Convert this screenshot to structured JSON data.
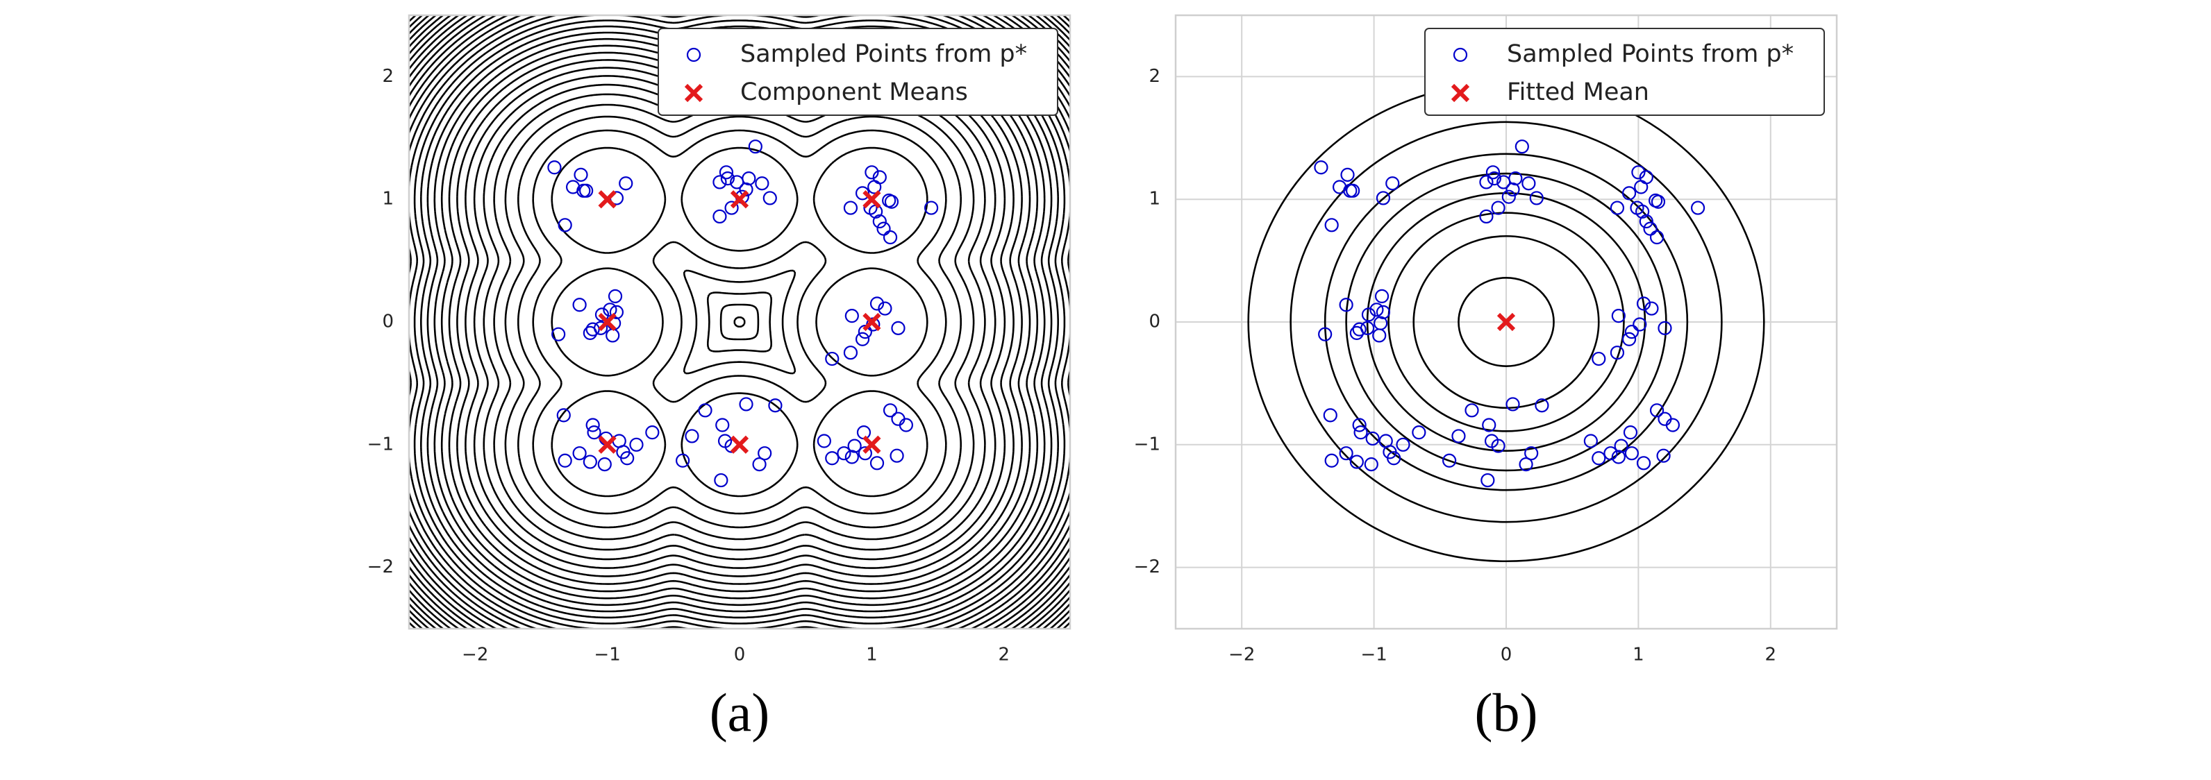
{
  "chart_data": [
    {
      "type": "scatter",
      "caption": "(a)",
      "legend": "upper right",
      "grid": false,
      "contours": "mixture",
      "xlim": [
        -2.5,
        2.5
      ],
      "ylim": [
        -2.5,
        2.5
      ],
      "xticks": [
        {
          "value": -2,
          "label": "−2"
        },
        {
          "value": -1,
          "label": "−1"
        },
        0,
        1,
        2
      ],
      "yticks": [
        {
          "value": -2,
          "label": "−2"
        },
        {
          "value": -1,
          "label": "−1"
        },
        0,
        1,
        2
      ],
      "series": [
        {
          "name": "Sampled Points from p*",
          "color": "#0000cc",
          "marker": "circle",
          "x": [
            -1.4,
            -1.26,
            -1.2,
            -1.18,
            -1.16,
            -1.32,
            -0.93,
            -0.86,
            0.12,
            -0.1,
            -0.09,
            -0.15,
            -0.02,
            0.07,
            0.05,
            0.17,
            0.23,
            -0.06,
            -0.15,
            0.02,
            0.93,
            1.0,
            1.06,
            1.02,
            1.13,
            1.15,
            0.99,
            1.03,
            1.06,
            1.09,
            1.14,
            1.45,
            0.84,
            -1.21,
            -0.94,
            -0.98,
            -0.93,
            -1.04,
            -1.05,
            -1.11,
            -1.13,
            -0.96,
            -1.37,
            -0.95,
            1.04,
            1.1,
            0.85,
            1.01,
            1.2,
            0.95,
            0.93,
            0.84,
            0.7,
            -1.33,
            -1.11,
            -1.1,
            -0.66,
            -1.01,
            -0.91,
            -0.78,
            -0.88,
            -0.85,
            -1.21,
            -1.32,
            -1.13,
            -1.02,
            0.05,
            -0.26,
            0.27,
            -0.13,
            -0.36,
            -0.11,
            -0.06,
            0.19,
            -0.43,
            0.15,
            -0.14,
            1.14,
            1.2,
            1.26,
            0.94,
            0.64,
            0.87,
            0.79,
            1.19,
            0.95,
            0.7,
            0.85,
            1.04
          ],
          "values": [
            1.26,
            1.1,
            1.2,
            1.07,
            1.07,
            0.79,
            1.01,
            1.13,
            1.43,
            1.22,
            1.17,
            1.14,
            1.14,
            1.17,
            1.08,
            1.13,
            1.01,
            0.93,
            0.86,
            1.02,
            1.05,
            1.22,
            1.18,
            1.1,
            0.99,
            0.98,
            0.93,
            0.9,
            0.82,
            0.76,
            0.69,
            0.93,
            0.93,
            0.14,
            0.21,
            0.1,
            0.08,
            0.06,
            -0.05,
            -0.06,
            -0.09,
            -0.11,
            -0.1,
            -0.01,
            0.15,
            0.11,
            0.05,
            -0.02,
            -0.05,
            -0.08,
            -0.14,
            -0.25,
            -0.3,
            -0.76,
            -0.84,
            -0.9,
            -0.9,
            -0.95,
            -0.97,
            -1.0,
            -1.06,
            -1.11,
            -1.07,
            -1.13,
            -1.14,
            -1.16,
            -0.67,
            -0.72,
            -0.68,
            -0.84,
            -0.93,
            -0.97,
            -1.01,
            -1.07,
            -1.13,
            -1.16,
            -1.29,
            -0.72,
            -0.79,
            -0.84,
            -0.9,
            -0.97,
            -1.01,
            -1.07,
            -1.09,
            -1.07,
            -1.11,
            -1.1,
            -1.15
          ]
        },
        {
          "name": "Component Means",
          "color": "#e31a1c",
          "marker": "x",
          "x": [
            -1,
            0,
            1,
            -1,
            1,
            -1,
            0,
            1
          ],
          "values": [
            1,
            1,
            1,
            0,
            0,
            -1,
            -1,
            -1
          ]
        }
      ]
    },
    {
      "type": "scatter",
      "caption": "(b)",
      "legend": "upper right",
      "grid": true,
      "contours": "gaussian",
      "xlim": [
        -2.5,
        2.5
      ],
      "ylim": [
        -2.5,
        2.5
      ],
      "xticks": [
        {
          "value": -2,
          "label": "−2"
        },
        {
          "value": -1,
          "label": "−1"
        },
        0,
        1,
        2
      ],
      "yticks": [
        {
          "value": -2,
          "label": "−2"
        },
        {
          "value": -1,
          "label": "−1"
        },
        0,
        1,
        2
      ],
      "series": [
        {
          "name": "Sampled Points from p*",
          "color": "#0000cc",
          "marker": "circle",
          "x": [
            -1.4,
            -1.26,
            -1.2,
            -1.18,
            -1.16,
            -1.32,
            -0.93,
            -0.86,
            0.12,
            -0.1,
            -0.09,
            -0.15,
            -0.02,
            0.07,
            0.05,
            0.17,
            0.23,
            -0.06,
            -0.15,
            0.02,
            0.93,
            1.0,
            1.06,
            1.02,
            1.13,
            1.15,
            0.99,
            1.03,
            1.06,
            1.09,
            1.14,
            1.45,
            0.84,
            -1.21,
            -0.94,
            -0.98,
            -0.93,
            -1.04,
            -1.05,
            -1.11,
            -1.13,
            -0.96,
            -1.37,
            -0.95,
            1.04,
            1.1,
            0.85,
            1.01,
            1.2,
            0.95,
            0.93,
            0.84,
            0.7,
            -1.33,
            -1.11,
            -1.1,
            -0.66,
            -1.01,
            -0.91,
            -0.78,
            -0.88,
            -0.85,
            -1.21,
            -1.32,
            -1.13,
            -1.02,
            0.05,
            -0.26,
            0.27,
            -0.13,
            -0.36,
            -0.11,
            -0.06,
            0.19,
            -0.43,
            0.15,
            -0.14,
            1.14,
            1.2,
            1.26,
            0.94,
            0.64,
            0.87,
            0.79,
            1.19,
            0.95,
            0.7,
            0.85,
            1.04
          ],
          "values": [
            1.26,
            1.1,
            1.2,
            1.07,
            1.07,
            0.79,
            1.01,
            1.13,
            1.43,
            1.22,
            1.17,
            1.14,
            1.14,
            1.17,
            1.08,
            1.13,
            1.01,
            0.93,
            0.86,
            1.02,
            1.05,
            1.22,
            1.18,
            1.1,
            0.99,
            0.98,
            0.93,
            0.9,
            0.82,
            0.76,
            0.69,
            0.93,
            0.93,
            0.14,
            0.21,
            0.1,
            0.08,
            0.06,
            -0.05,
            -0.06,
            -0.09,
            -0.11,
            -0.1,
            -0.01,
            0.15,
            0.11,
            0.05,
            -0.02,
            -0.05,
            -0.08,
            -0.14,
            -0.25,
            -0.3,
            -0.76,
            -0.84,
            -0.9,
            -0.9,
            -0.95,
            -0.97,
            -1.0,
            -1.06,
            -1.11,
            -1.07,
            -1.13,
            -1.14,
            -1.16,
            -0.67,
            -0.72,
            -0.68,
            -0.84,
            -0.93,
            -0.97,
            -1.01,
            -1.07,
            -1.13,
            -1.16,
            -1.29,
            -0.72,
            -0.79,
            -0.84,
            -0.9,
            -0.97,
            -1.01,
            -1.07,
            -1.09,
            -1.07,
            -1.11,
            -1.1,
            -1.15
          ]
        },
        {
          "name": "Fitted Mean",
          "color": "#e31a1c",
          "marker": "x",
          "x": [
            0
          ],
          "values": [
            0
          ]
        }
      ]
    }
  ]
}
